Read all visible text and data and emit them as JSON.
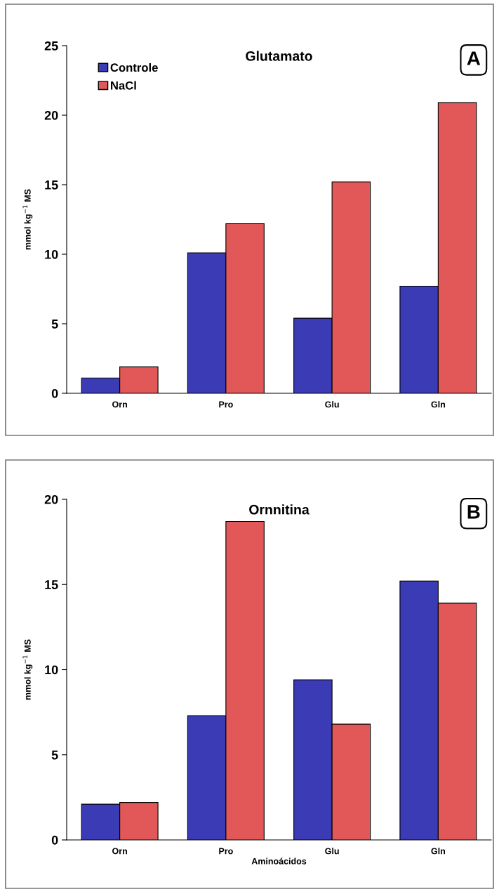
{
  "chart_data": [
    {
      "type": "bar",
      "title": "Glutamato",
      "ylabel": "mmol kg$^{−1}$ MS",
      "categories": [
        "Orn",
        "Pro",
        "Glu",
        "Gln"
      ],
      "series": [
        {
          "name": "Controle",
          "color": "#3b3bb5",
          "values": [
            1.1,
            10.1,
            5.4,
            7.7
          ]
        },
        {
          "name": "NaCl",
          "color": "#e25858",
          "values": [
            1.9,
            12.2,
            15.2,
            20.9
          ]
        }
      ],
      "ylim": [
        0,
        25
      ],
      "yticks": [
        0,
        5,
        10,
        15,
        20,
        25
      ],
      "legend": "top left",
      "annotations": [
        "A"
      ]
    },
    {
      "type": "bar",
      "title": "Ornnitina",
      "ylabel": "mmol kg$^{−1}$ MS",
      "xlabel": "Aminoácidos",
      "categories": [
        "Orn",
        "Pro",
        "Glu",
        "Gln"
      ],
      "series": [
        {
          "color": "#3b3bb5",
          "values": [
            2.1,
            7.3,
            9.4,
            15.2
          ]
        },
        {
          "color": "#e25858",
          "values": [
            2.2,
            18.7,
            6.8,
            13.9
          ]
        }
      ],
      "ylim": [
        0,
        20
      ],
      "yticks": [
        0,
        5,
        10,
        15,
        20
      ],
      "legend": false,
      "annotations": [
        "B"
      ]
    }
  ]
}
